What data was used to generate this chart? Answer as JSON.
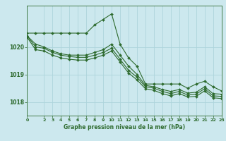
{
  "title": "Graphe pression niveau de la mer (hPa)",
  "background_color": "#cce8ee",
  "grid_color": "#aed4dc",
  "line_color": "#2d6a2d",
  "xlim": [
    0,
    23
  ],
  "ylim": [
    1017.5,
    1021.5
  ],
  "yticks": [
    1018,
    1019,
    1020
  ],
  "xticks": [
    0,
    2,
    3,
    4,
    5,
    6,
    7,
    8,
    9,
    10,
    11,
    12,
    13,
    14,
    15,
    16,
    17,
    18,
    19,
    20,
    21,
    22,
    23
  ],
  "series": [
    {
      "x": [
        0,
        1,
        2,
        3,
        4,
        5,
        6,
        7,
        8,
        9,
        10,
        11,
        12,
        13,
        14,
        15,
        16,
        17,
        18,
        19,
        20,
        21,
        22,
        23
      ],
      "y": [
        1020.5,
        1020.5,
        1020.5,
        1020.5,
        1020.5,
        1020.5,
        1020.5,
        1020.5,
        1020.8,
        1021.0,
        1021.2,
        1020.1,
        1019.6,
        1019.3,
        1018.65,
        1018.65,
        1018.65,
        1018.65,
        1018.65,
        1018.5,
        1018.65,
        1018.75,
        1018.55,
        1018.4
      ]
    },
    {
      "x": [
        0,
        1,
        2,
        3,
        4,
        5,
        6,
        7,
        8,
        9,
        10,
        11,
        12,
        13,
        14,
        15,
        16,
        17,
        18,
        19,
        20,
        21,
        22,
        23
      ],
      "y": [
        1020.4,
        1020.1,
        1020.0,
        1019.85,
        1019.75,
        1019.7,
        1019.7,
        1019.7,
        1019.8,
        1019.9,
        1020.1,
        1019.7,
        1019.3,
        1019.0,
        1018.6,
        1018.55,
        1018.45,
        1018.38,
        1018.45,
        1018.32,
        1018.35,
        1018.55,
        1018.3,
        1018.28
      ]
    },
    {
      "x": [
        0,
        1,
        2,
        3,
        4,
        5,
        6,
        7,
        8,
        9,
        10,
        11,
        12,
        13,
        14,
        15,
        16,
        17,
        18,
        19,
        20,
        21,
        22,
        23
      ],
      "y": [
        1020.4,
        1020.0,
        1019.95,
        1019.8,
        1019.7,
        1019.65,
        1019.62,
        1019.62,
        1019.7,
        1019.8,
        1019.95,
        1019.55,
        1019.15,
        1018.9,
        1018.55,
        1018.5,
        1018.38,
        1018.3,
        1018.38,
        1018.25,
        1018.28,
        1018.48,
        1018.22,
        1018.2
      ]
    },
    {
      "x": [
        0,
        1,
        2,
        3,
        4,
        5,
        6,
        7,
        8,
        9,
        10,
        11,
        12,
        13,
        14,
        15,
        16,
        17,
        18,
        19,
        20,
        21,
        22,
        23
      ],
      "y": [
        1020.35,
        1019.9,
        1019.85,
        1019.7,
        1019.6,
        1019.55,
        1019.52,
        1019.52,
        1019.6,
        1019.7,
        1019.85,
        1019.45,
        1019.05,
        1018.8,
        1018.48,
        1018.42,
        1018.3,
        1018.22,
        1018.3,
        1018.18,
        1018.2,
        1018.4,
        1018.15,
        1018.12
      ]
    }
  ],
  "markersize": 2.0,
  "linewidth": 0.8,
  "marker": "D"
}
